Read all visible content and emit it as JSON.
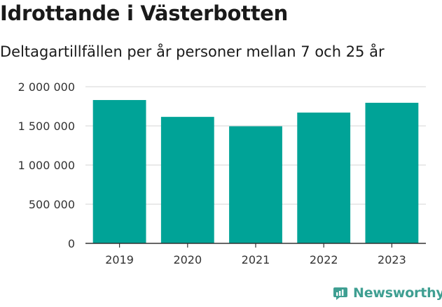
{
  "title": "Idrottande i Västerbotten",
  "subtitle": "Deltagartillfällen per år personer mellan 7 och 25 år",
  "brand": {
    "name": "Newsworthy",
    "icon": "newsworthy-logo-icon",
    "color": "#3f9f92"
  },
  "colors": {
    "bar": "#00a397",
    "grid": "#dddddd",
    "axis": "#333333",
    "text": "#333333"
  },
  "chart_data": {
    "type": "bar",
    "title": "Idrottande i Västerbotten",
    "subtitle": "Deltagartillfällen per år personer mellan 7 och 25 år",
    "categories": [
      "2019",
      "2020",
      "2021",
      "2022",
      "2023"
    ],
    "values": [
      1830000,
      1615000,
      1495000,
      1670000,
      1795000
    ],
    "ylim": [
      0,
      2000000
    ],
    "yticks": [
      0,
      500000,
      1000000,
      1500000,
      2000000
    ],
    "ytick_labels": [
      "0",
      "500 000",
      "1 000 000",
      "1 500 000",
      "2 000 000"
    ],
    "xlabel": "",
    "ylabel": "",
    "grid": true,
    "legend": "none"
  }
}
